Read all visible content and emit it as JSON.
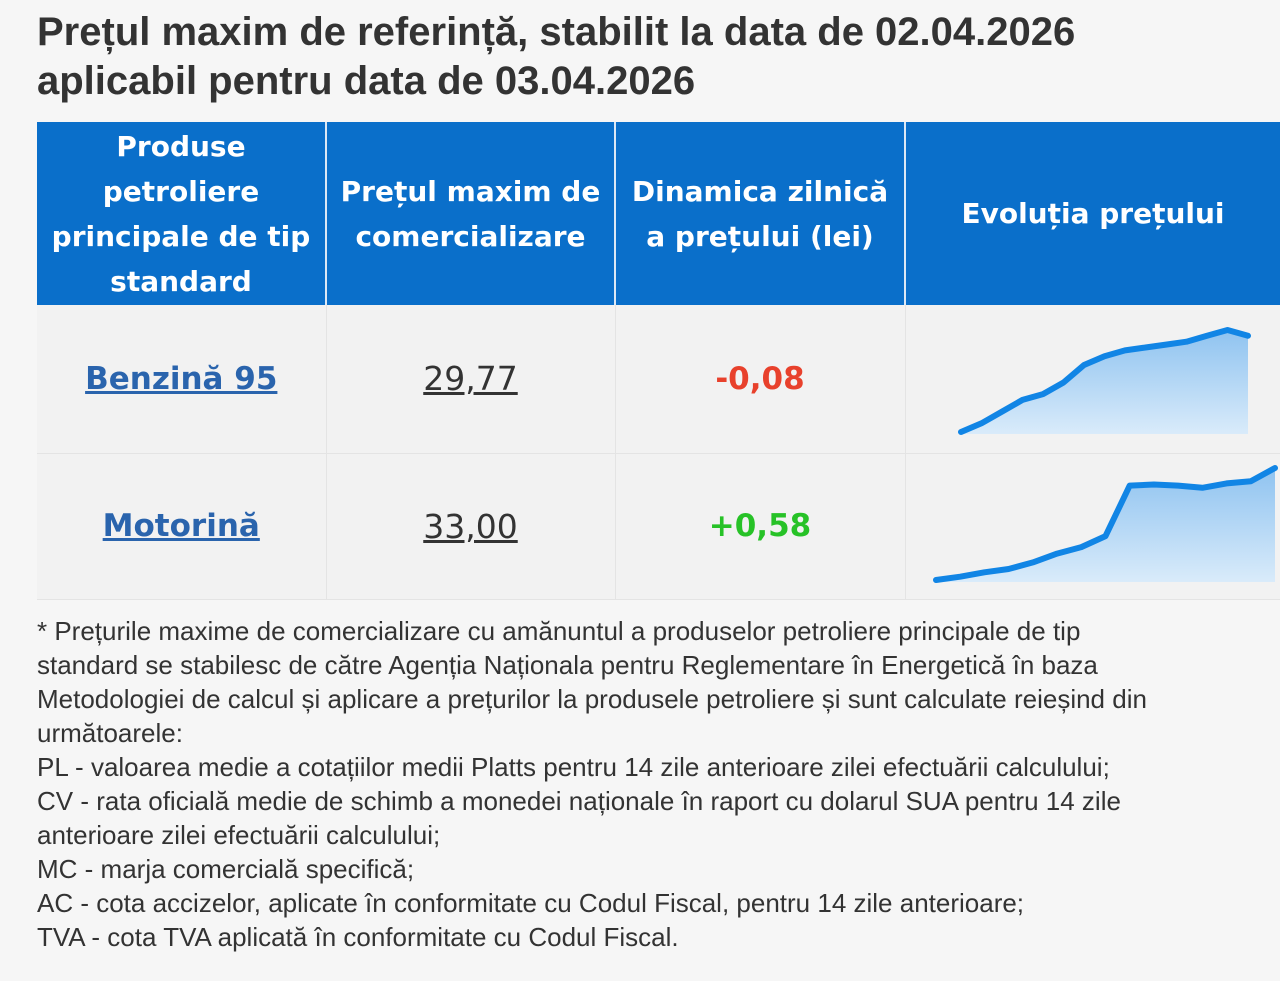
{
  "header": {
    "title_line1": "Prețul maxim de referință, stabilit la data de 02.04.2026",
    "title_line2": "aplicabil pentru data de 03.04.2026"
  },
  "table": {
    "columns": [
      "Produse petroliere principale de tip standard",
      "Prețul maxim de comercializare",
      "Dinamica zilnică a prețului (lei)",
      "Evoluția prețului"
    ],
    "rows": [
      {
        "product": "Benzină 95",
        "price": "29,77",
        "dynamic": "-0,08",
        "trend": "down",
        "spark_color": "#1185e5",
        "spark": [
          10,
          16,
          24,
          32,
          36,
          44,
          56,
          62,
          66,
          68,
          70,
          72,
          76,
          80,
          76
        ]
      },
      {
        "product": "Motorină",
        "price": "33,00",
        "dynamic": "+0,58",
        "trend": "up",
        "spark_color": "#1185e5",
        "spark": [
          6,
          9,
          13,
          16,
          22,
          30,
          36,
          46,
          92,
          93,
          92,
          90,
          94,
          96,
          108
        ]
      }
    ]
  },
  "notes": {
    "lines": [
      "* Prețurile maxime de comercializare cu amănuntul a produselor petroliere principale de tip",
      "standard se stabilesc de către Agenția Naționala pentru Reglementare în Energetică în baza",
      "Metodologiei de calcul și aplicare a prețurilor la produsele petroliere și sunt calculate reieșind din",
      "următoarele:",
      "PL - valoarea medie a cotațiilor medii Platts pentru 14 zile anterioare zilei efectuării calculului;",
      "CV - rata oficială medie de schimb a monedei naționale în raport cu dolarul SUA pentru 14 zile",
      "anterioare zilei efectuării calculului;",
      "MC - marja comercială specifică;",
      "AC - cota accizelor, aplicate în conformitate cu Codul Fiscal, pentru 14 zile anterioare;",
      "TVA - cota TVA aplicată în conformitate cu Codul Fiscal."
    ]
  },
  "colors": {
    "header_bg": "#0a6fca",
    "link": "#2a64ad",
    "negative": "#e8412c",
    "positive": "#27c227"
  }
}
